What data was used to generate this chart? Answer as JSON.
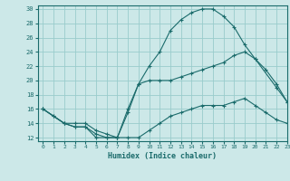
{
  "xlabel": "Humidex (Indice chaleur)",
  "xlim": [
    -0.5,
    23
  ],
  "ylim": [
    11.5,
    30.5
  ],
  "xticks": [
    0,
    1,
    2,
    3,
    4,
    5,
    6,
    7,
    8,
    9,
    10,
    11,
    12,
    13,
    14,
    15,
    16,
    17,
    18,
    19,
    20,
    21,
    22,
    23
  ],
  "yticks": [
    12,
    14,
    16,
    18,
    20,
    22,
    24,
    26,
    28,
    30
  ],
  "background_color": "#cce8e8",
  "grid_color": "#99cccc",
  "line_color": "#1a6b6b",
  "curve1_x": [
    0,
    1,
    2,
    3,
    4,
    5,
    6,
    7,
    8,
    9,
    10,
    11,
    12,
    13,
    14,
    15,
    16,
    17,
    18,
    19,
    20,
    21,
    22,
    23
  ],
  "curve1_y": [
    16.0,
    15.0,
    14.0,
    13.5,
    13.5,
    12.0,
    12.0,
    12.0,
    15.5,
    19.5,
    20.0,
    20.0,
    20.0,
    20.5,
    21.0,
    21.5,
    22.0,
    22.5,
    23.5,
    24.0,
    23.0,
    21.5,
    19.5,
    17.0
  ],
  "curve2_x": [
    0,
    1,
    2,
    3,
    4,
    5,
    6,
    7,
    8,
    9,
    10,
    11,
    12,
    13,
    14,
    15,
    16,
    17,
    18,
    19,
    20,
    21,
    22,
    23
  ],
  "curve2_y": [
    16.0,
    15.0,
    14.0,
    13.5,
    13.5,
    12.5,
    12.0,
    12.0,
    12.0,
    12.0,
    13.0,
    14.0,
    15.0,
    15.5,
    16.0,
    16.5,
    16.5,
    16.5,
    17.0,
    17.5,
    16.5,
    15.5,
    14.5,
    14.0
  ],
  "curve3_x": [
    0,
    2,
    3,
    4,
    5,
    6,
    7,
    8,
    9,
    10,
    11,
    12,
    13,
    14,
    15,
    16,
    17,
    18,
    19,
    20,
    22,
    23
  ],
  "curve3_y": [
    16.0,
    14.0,
    14.0,
    14.0,
    13.0,
    12.5,
    12.0,
    16.0,
    19.5,
    22.0,
    24.0,
    27.0,
    28.5,
    29.5,
    30.0,
    30.0,
    29.0,
    27.5,
    25.0,
    23.0,
    19.0,
    17.0
  ]
}
